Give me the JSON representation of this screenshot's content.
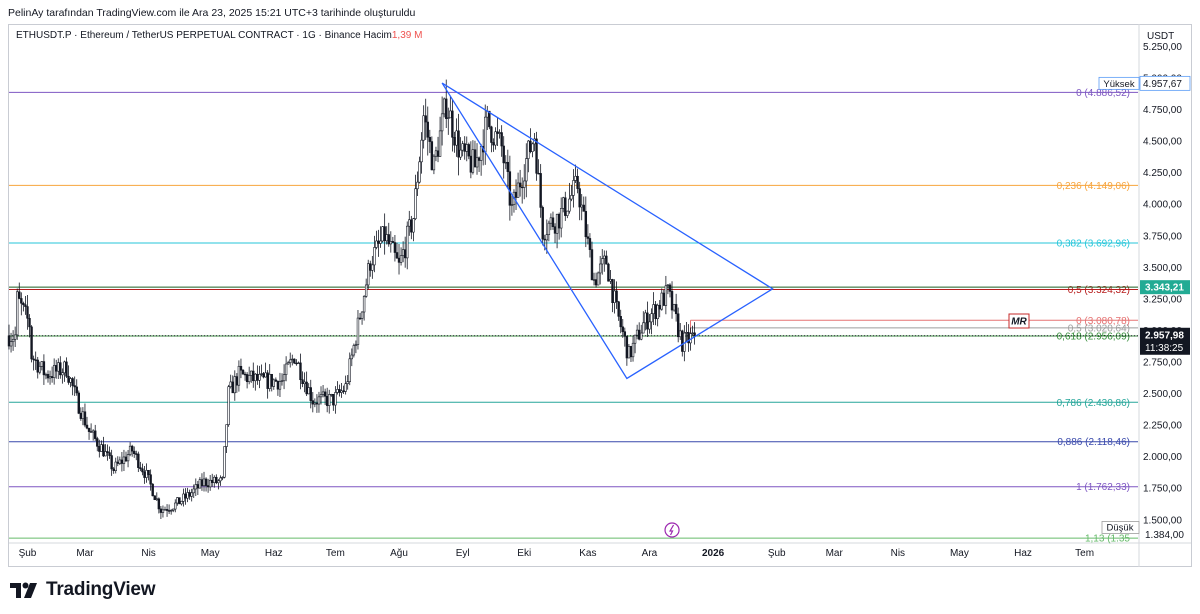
{
  "attribution": "PelinAy tarafından TradingView.com ile Ara 23, 2025 15:21 UTC+3 tarihinde oluşturuldu",
  "symbol": {
    "ticker": "ETHUSDT.P",
    "description": "· Ethereum / TetherUS PERPETUAL CONTRACT · 1G · Binance",
    "volume_label": "Hacim",
    "volume_value": "1,39 M"
  },
  "brand": "TradingView",
  "colors": {
    "up": "#26a69a",
    "down": "#ef5350",
    "candle": "#131722",
    "triangle": "#2962ff",
    "price_badge": "#131722",
    "high_badge_line": "#5b9cf6",
    "green_badge": "#22ab94"
  },
  "chart_data": {
    "type": "candlestick",
    "currency_label": "USDT",
    "x_ticks": [
      "Şub",
      "Mar",
      "Nis",
      "May",
      "Haz",
      "Tem",
      "Ağu",
      "Eyl",
      "Eki",
      "Kas",
      "Ara",
      "2026",
      "Şub",
      "Mar",
      "Nis",
      "May",
      "Haz",
      "Tem"
    ],
    "y_ticks": [
      "5.250,00",
      "5.000,00",
      "4.750,00",
      "4.500,00",
      "4.250,00",
      "4.000,00",
      "3.750,00",
      "3.500,00",
      "3.250,00",
      "3.000,00",
      "2.750,00",
      "2.500,00",
      "2.250,00",
      "2.000,00",
      "1.750,00",
      "1.500,00"
    ],
    "ylim": [
      1340,
      5420
    ],
    "price_path": [
      [
        "2025-01-27",
        3250
      ],
      [
        "2025-02-02",
        3050
      ],
      [
        "2025-02-03",
        2800
      ],
      [
        "2025-02-10",
        2650
      ],
      [
        "2025-02-20",
        2700
      ],
      [
        "2025-02-25",
        2450
      ],
      [
        "2025-03-03",
        2200
      ],
      [
        "2025-03-10",
        2050
      ],
      [
        "2025-03-15",
        1900
      ],
      [
        "2025-03-24",
        2050
      ],
      [
        "2025-03-31",
        1850
      ],
      [
        "2025-04-07",
        1580
      ],
      [
        "2025-04-14",
        1620
      ],
      [
        "2025-04-21",
        1700
      ],
      [
        "2025-04-28",
        1800
      ],
      [
        "2025-05-07",
        1800
      ],
      [
        "2025-05-10",
        2500
      ],
      [
        "2025-05-15",
        2650
      ],
      [
        "2025-05-25",
        2600
      ],
      [
        "2025-06-05",
        2600
      ],
      [
        "2025-06-11",
        2800
      ],
      [
        "2025-06-20",
        2450
      ],
      [
        "2025-06-30",
        2450
      ],
      [
        "2025-07-06",
        2550
      ],
      [
        "2025-07-11",
        2950
      ],
      [
        "2025-07-18",
        3550
      ],
      [
        "2025-07-25",
        3750
      ],
      [
        "2025-08-01",
        3500
      ],
      [
        "2025-08-08",
        3900
      ],
      [
        "2025-08-13",
        4700
      ],
      [
        "2025-08-18",
        4300
      ],
      [
        "2025-08-24",
        4800
      ],
      [
        "2025-08-31",
        4400
      ],
      [
        "2025-09-07",
        4300
      ],
      [
        "2025-09-13",
        4650
      ],
      [
        "2025-09-20",
        4450
      ],
      [
        "2025-09-25",
        3950
      ],
      [
        "2025-10-01",
        4300
      ],
      [
        "2025-10-06",
        4550
      ],
      [
        "2025-10-10",
        3800
      ],
      [
        "2025-10-18",
        3900
      ],
      [
        "2025-10-27",
        4150
      ],
      [
        "2025-11-04",
        3400
      ],
      [
        "2025-11-10",
        3550
      ],
      [
        "2025-11-15",
        3150
      ],
      [
        "2025-11-21",
        2800
      ],
      [
        "2025-11-28",
        3050
      ],
      [
        "2025-12-03",
        3150
      ],
      [
        "2025-12-10",
        3300
      ],
      [
        "2025-12-17",
        2900
      ],
      [
        "2025-12-23",
        2958
      ]
    ],
    "high": {
      "label": "Yüksek",
      "value": "4.957,67"
    },
    "low": {
      "label": "Düşük",
      "value": "1.384,00"
    },
    "last_price": {
      "value": "2.957,98",
      "countdown": "11:38:25"
    },
    "green_marker": {
      "value": "3.343,21",
      "price": 3343
    },
    "fib_levels": [
      {
        "ratio": "0",
        "text": "0 (4.886,52)",
        "price": 4886.52,
        "color": "#7e57c2"
      },
      {
        "ratio": "0.236",
        "text": "0,236 (4.149,06)",
        "price": 4149.06,
        "color": "#f7a43c"
      },
      {
        "ratio": "0.382",
        "text": "0,382 (3.692,96)",
        "price": 3692.96,
        "color": "#26c6da"
      },
      {
        "ratio": "0.5",
        "text": "0,5 (3.324,32)",
        "price": 3324.32,
        "color": "#b71c1c"
      },
      {
        "ratio": "0.618",
        "text": "0,618 (2.956,09)",
        "price": 2956.09,
        "color": "#388e3c"
      },
      {
        "ratio": "0.786",
        "text": "0,786 (2.430,86)",
        "price": 2430.86,
        "color": "#26a69a"
      },
      {
        "ratio": "0.886",
        "text": "0,886 (2.118,46)",
        "price": 2118.46,
        "color": "#3949ab"
      },
      {
        "ratio": "1",
        "text": "1 (1.762,33)",
        "price": 1762.33,
        "color": "#7e57c2"
      },
      {
        "ratio": "1.13",
        "text": "1,13 (1.35",
        "price": 1355,
        "color": "#66bb6a"
      }
    ],
    "small_fib": [
      {
        "text": "0 (3.080,78)",
        "price": 3080.78,
        "color": "#e57373"
      },
      {
        "text": "0,5 (3.020,64)",
        "price": 3020.64,
        "color": "#9e9e9e"
      }
    ],
    "triangle": {
      "points": [
        [
          "2025-08-22",
          4960
        ],
        [
          "2025-11-20",
          2620
        ],
        [
          "2026-01-30",
          3330
        ]
      ]
    },
    "annotations": {
      "mr_label": "MR"
    }
  }
}
